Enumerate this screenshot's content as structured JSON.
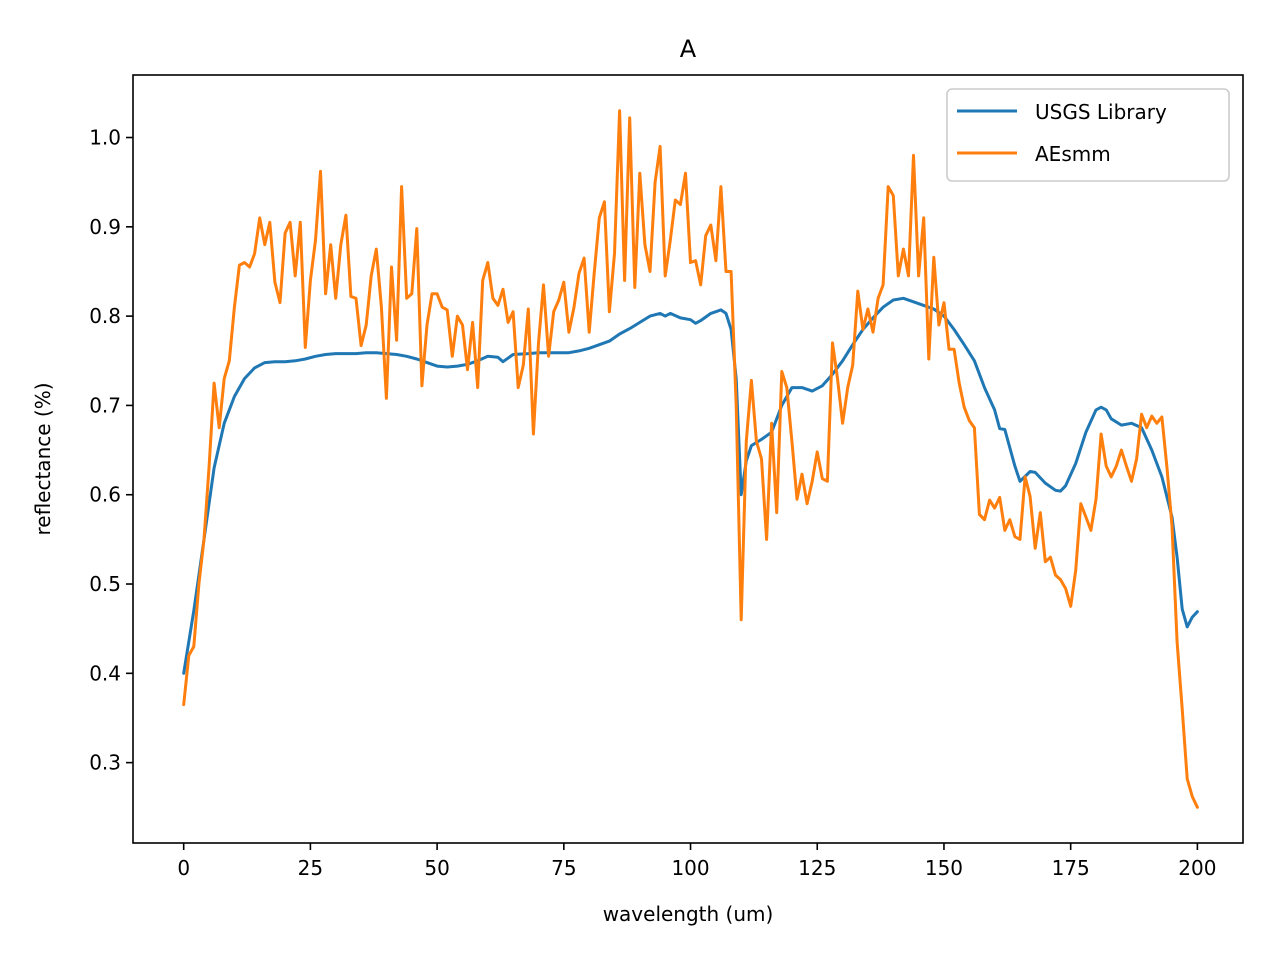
{
  "chart_data": {
    "type": "line",
    "title": "A",
    "xlabel": "wavelength (um)",
    "ylabel": "reflectance (%)",
    "xlim": [
      -10,
      209
    ],
    "ylim": [
      0.21,
      1.07
    ],
    "xticks": [
      0,
      25,
      50,
      75,
      100,
      125,
      150,
      175,
      200
    ],
    "yticks": [
      0.3,
      0.4,
      0.5,
      0.6,
      0.7,
      0.8,
      0.9,
      1.0
    ],
    "ytick_labels": [
      "0.3",
      "0.4",
      "0.5",
      "0.6",
      "0.7",
      "0.8",
      "0.9",
      "1.0"
    ],
    "legend_position": "top-right",
    "grid": false,
    "series": [
      {
        "name": "USGS Library",
        "color": "#1f77b4",
        "points": [
          [
            0,
            0.4
          ],
          [
            2,
            0.47
          ],
          [
            4,
            0.55
          ],
          [
            6,
            0.63
          ],
          [
            8,
            0.68
          ],
          [
            10,
            0.71
          ],
          [
            12,
            0.73
          ],
          [
            14,
            0.742
          ],
          [
            16,
            0.748
          ],
          [
            18,
            0.749
          ],
          [
            20,
            0.749
          ],
          [
            22,
            0.75
          ],
          [
            24,
            0.752
          ],
          [
            26,
            0.755
          ],
          [
            28,
            0.757
          ],
          [
            30,
            0.758
          ],
          [
            32,
            0.758
          ],
          [
            34,
            0.758
          ],
          [
            36,
            0.759
          ],
          [
            38,
            0.759
          ],
          [
            40,
            0.758
          ],
          [
            42,
            0.757
          ],
          [
            44,
            0.755
          ],
          [
            46,
            0.752
          ],
          [
            48,
            0.748
          ],
          [
            50,
            0.744
          ],
          [
            52,
            0.743
          ],
          [
            54,
            0.744
          ],
          [
            56,
            0.746
          ],
          [
            58,
            0.75
          ],
          [
            60,
            0.755
          ],
          [
            62,
            0.754
          ],
          [
            63,
            0.749
          ],
          [
            65,
            0.757
          ],
          [
            68,
            0.758
          ],
          [
            70,
            0.759
          ],
          [
            72,
            0.759
          ],
          [
            74,
            0.759
          ],
          [
            76,
            0.759
          ],
          [
            78,
            0.761
          ],
          [
            80,
            0.764
          ],
          [
            82,
            0.768
          ],
          [
            84,
            0.772
          ],
          [
            86,
            0.78
          ],
          [
            88,
            0.786
          ],
          [
            90,
            0.793
          ],
          [
            92,
            0.8
          ],
          [
            94,
            0.803
          ],
          [
            95,
            0.8
          ],
          [
            96,
            0.803
          ],
          [
            98,
            0.798
          ],
          [
            100,
            0.796
          ],
          [
            101,
            0.792
          ],
          [
            102,
            0.795
          ],
          [
            104,
            0.803
          ],
          [
            106,
            0.807
          ],
          [
            107,
            0.803
          ],
          [
            108,
            0.785
          ],
          [
            109,
            0.73
          ],
          [
            110,
            0.6
          ],
          [
            111,
            0.638
          ],
          [
            112,
            0.655
          ],
          [
            114,
            0.662
          ],
          [
            116,
            0.67
          ],
          [
            118,
            0.7
          ],
          [
            120,
            0.72
          ],
          [
            122,
            0.72
          ],
          [
            124,
            0.716
          ],
          [
            126,
            0.722
          ],
          [
            128,
            0.735
          ],
          [
            130,
            0.75
          ],
          [
            132,
            0.768
          ],
          [
            134,
            0.785
          ],
          [
            136,
            0.798
          ],
          [
            138,
            0.81
          ],
          [
            140,
            0.818
          ],
          [
            142,
            0.82
          ],
          [
            144,
            0.816
          ],
          [
            146,
            0.812
          ],
          [
            148,
            0.808
          ],
          [
            150,
            0.8
          ],
          [
            152,
            0.785
          ],
          [
            154,
            0.768
          ],
          [
            156,
            0.75
          ],
          [
            158,
            0.72
          ],
          [
            160,
            0.695
          ],
          [
            161,
            0.674
          ],
          [
            162,
            0.673
          ],
          [
            164,
            0.632
          ],
          [
            165,
            0.615
          ],
          [
            167,
            0.626
          ],
          [
            168,
            0.625
          ],
          [
            170,
            0.613
          ],
          [
            172,
            0.605
          ],
          [
            173,
            0.604
          ],
          [
            174,
            0.61
          ],
          [
            176,
            0.635
          ],
          [
            178,
            0.67
          ],
          [
            180,
            0.695
          ],
          [
            181,
            0.698
          ],
          [
            182,
            0.695
          ],
          [
            183,
            0.685
          ],
          [
            185,
            0.678
          ],
          [
            187,
            0.68
          ],
          [
            189,
            0.675
          ],
          [
            191,
            0.65
          ],
          [
            193,
            0.62
          ],
          [
            195,
            0.575
          ],
          [
            196,
            0.53
          ],
          [
            197,
            0.472
          ],
          [
            198,
            0.452
          ],
          [
            199,
            0.463
          ],
          [
            200,
            0.469
          ]
        ]
      },
      {
        "name": "AEsmm",
        "color": "#ff7f0e",
        "points": [
          [
            0,
            0.365
          ],
          [
            1,
            0.42
          ],
          [
            2,
            0.43
          ],
          [
            3,
            0.5
          ],
          [
            4,
            0.55
          ],
          [
            5,
            0.63
          ],
          [
            6,
            0.725
          ],
          [
            7,
            0.675
          ],
          [
            8,
            0.73
          ],
          [
            9,
            0.75
          ],
          [
            10,
            0.81
          ],
          [
            11,
            0.857
          ],
          [
            12,
            0.86
          ],
          [
            13,
            0.855
          ],
          [
            14,
            0.87
          ],
          [
            15,
            0.91
          ],
          [
            16,
            0.88
          ],
          [
            17,
            0.905
          ],
          [
            18,
            0.838
          ],
          [
            19,
            0.815
          ],
          [
            20,
            0.893
          ],
          [
            21,
            0.905
          ],
          [
            22,
            0.845
          ],
          [
            23,
            0.905
          ],
          [
            24,
            0.765
          ],
          [
            25,
            0.84
          ],
          [
            26,
            0.885
          ],
          [
            27,
            0.962
          ],
          [
            28,
            0.825
          ],
          [
            29,
            0.88
          ],
          [
            30,
            0.82
          ],
          [
            31,
            0.88
          ],
          [
            32,
            0.913
          ],
          [
            33,
            0.822
          ],
          [
            34,
            0.82
          ],
          [
            35,
            0.767
          ],
          [
            36,
            0.79
          ],
          [
            37,
            0.845
          ],
          [
            38,
            0.875
          ],
          [
            39,
            0.81
          ],
          [
            40,
            0.708
          ],
          [
            41,
            0.855
          ],
          [
            42,
            0.773
          ],
          [
            43,
            0.945
          ],
          [
            44,
            0.82
          ],
          [
            45,
            0.825
          ],
          [
            46,
            0.898
          ],
          [
            47,
            0.722
          ],
          [
            48,
            0.79
          ],
          [
            49,
            0.825
          ],
          [
            50,
            0.825
          ],
          [
            51,
            0.81
          ],
          [
            52,
            0.807
          ],
          [
            53,
            0.755
          ],
          [
            54,
            0.8
          ],
          [
            55,
            0.79
          ],
          [
            56,
            0.74
          ],
          [
            57,
            0.793
          ],
          [
            58,
            0.72
          ],
          [
            59,
            0.84
          ],
          [
            60,
            0.86
          ],
          [
            61,
            0.82
          ],
          [
            62,
            0.812
          ],
          [
            63,
            0.83
          ],
          [
            64,
            0.793
          ],
          [
            65,
            0.805
          ],
          [
            66,
            0.72
          ],
          [
            67,
            0.745
          ],
          [
            68,
            0.808
          ],
          [
            69,
            0.668
          ],
          [
            70,
            0.77
          ],
          [
            71,
            0.835
          ],
          [
            72,
            0.755
          ],
          [
            73,
            0.805
          ],
          [
            74,
            0.818
          ],
          [
            75,
            0.838
          ],
          [
            76,
            0.782
          ],
          [
            77,
            0.81
          ],
          [
            78,
            0.848
          ],
          [
            79,
            0.865
          ],
          [
            80,
            0.782
          ],
          [
            81,
            0.848
          ],
          [
            82,
            0.91
          ],
          [
            83,
            0.928
          ],
          [
            84,
            0.805
          ],
          [
            85,
            0.87
          ],
          [
            86,
            1.03
          ],
          [
            87,
            0.84
          ],
          [
            88,
            1.022
          ],
          [
            89,
            0.832
          ],
          [
            90,
            0.96
          ],
          [
            91,
            0.88
          ],
          [
            92,
            0.85
          ],
          [
            93,
            0.95
          ],
          [
            94,
            0.99
          ],
          [
            95,
            0.845
          ],
          [
            96,
            0.885
          ],
          [
            97,
            0.93
          ],
          [
            98,
            0.925
          ],
          [
            99,
            0.96
          ],
          [
            100,
            0.86
          ],
          [
            101,
            0.862
          ],
          [
            102,
            0.835
          ],
          [
            103,
            0.89
          ],
          [
            104,
            0.902
          ],
          [
            105,
            0.862
          ],
          [
            106,
            0.945
          ],
          [
            107,
            0.85
          ],
          [
            108,
            0.85
          ],
          [
            109,
            0.7
          ],
          [
            110,
            0.46
          ],
          [
            111,
            0.66
          ],
          [
            112,
            0.728
          ],
          [
            113,
            0.66
          ],
          [
            114,
            0.64
          ],
          [
            115,
            0.55
          ],
          [
            116,
            0.68
          ],
          [
            117,
            0.58
          ],
          [
            118,
            0.738
          ],
          [
            119,
            0.72
          ],
          [
            120,
            0.66
          ],
          [
            121,
            0.595
          ],
          [
            122,
            0.623
          ],
          [
            123,
            0.59
          ],
          [
            124,
            0.615
          ],
          [
            125,
            0.648
          ],
          [
            126,
            0.618
          ],
          [
            127,
            0.615
          ],
          [
            128,
            0.77
          ],
          [
            129,
            0.73
          ],
          [
            130,
            0.68
          ],
          [
            131,
            0.72
          ],
          [
            132,
            0.745
          ],
          [
            133,
            0.828
          ],
          [
            134,
            0.785
          ],
          [
            135,
            0.808
          ],
          [
            136,
            0.782
          ],
          [
            137,
            0.82
          ],
          [
            138,
            0.835
          ],
          [
            139,
            0.945
          ],
          [
            140,
            0.935
          ],
          [
            141,
            0.845
          ],
          [
            142,
            0.875
          ],
          [
            143,
            0.845
          ],
          [
            144,
            0.98
          ],
          [
            145,
            0.845
          ],
          [
            146,
            0.91
          ],
          [
            147,
            0.752
          ],
          [
            148,
            0.866
          ],
          [
            149,
            0.79
          ],
          [
            150,
            0.815
          ],
          [
            151,
            0.763
          ],
          [
            152,
            0.763
          ],
          [
            153,
            0.725
          ],
          [
            154,
            0.698
          ],
          [
            155,
            0.683
          ],
          [
            156,
            0.675
          ],
          [
            157,
            0.578
          ],
          [
            158,
            0.572
          ],
          [
            159,
            0.594
          ],
          [
            160,
            0.585
          ],
          [
            161,
            0.597
          ],
          [
            162,
            0.56
          ],
          [
            163,
            0.572
          ],
          [
            164,
            0.553
          ],
          [
            165,
            0.55
          ],
          [
            166,
            0.62
          ],
          [
            167,
            0.598
          ],
          [
            168,
            0.54
          ],
          [
            169,
            0.58
          ],
          [
            170,
            0.525
          ],
          [
            171,
            0.53
          ],
          [
            172,
            0.51
          ],
          [
            173,
            0.505
          ],
          [
            174,
            0.495
          ],
          [
            175,
            0.475
          ],
          [
            176,
            0.515
          ],
          [
            177,
            0.59
          ],
          [
            178,
            0.575
          ],
          [
            179,
            0.56
          ],
          [
            180,
            0.595
          ],
          [
            181,
            0.668
          ],
          [
            182,
            0.632
          ],
          [
            183,
            0.62
          ],
          [
            184,
            0.632
          ],
          [
            185,
            0.65
          ],
          [
            186,
            0.632
          ],
          [
            187,
            0.615
          ],
          [
            188,
            0.64
          ],
          [
            189,
            0.69
          ],
          [
            190,
            0.675
          ],
          [
            191,
            0.688
          ],
          [
            192,
            0.68
          ],
          [
            193,
            0.687
          ],
          [
            194,
            0.63
          ],
          [
            195,
            0.565
          ],
          [
            196,
            0.435
          ],
          [
            197,
            0.36
          ],
          [
            198,
            0.282
          ],
          [
            199,
            0.262
          ],
          [
            200,
            0.25
          ]
        ]
      }
    ]
  }
}
